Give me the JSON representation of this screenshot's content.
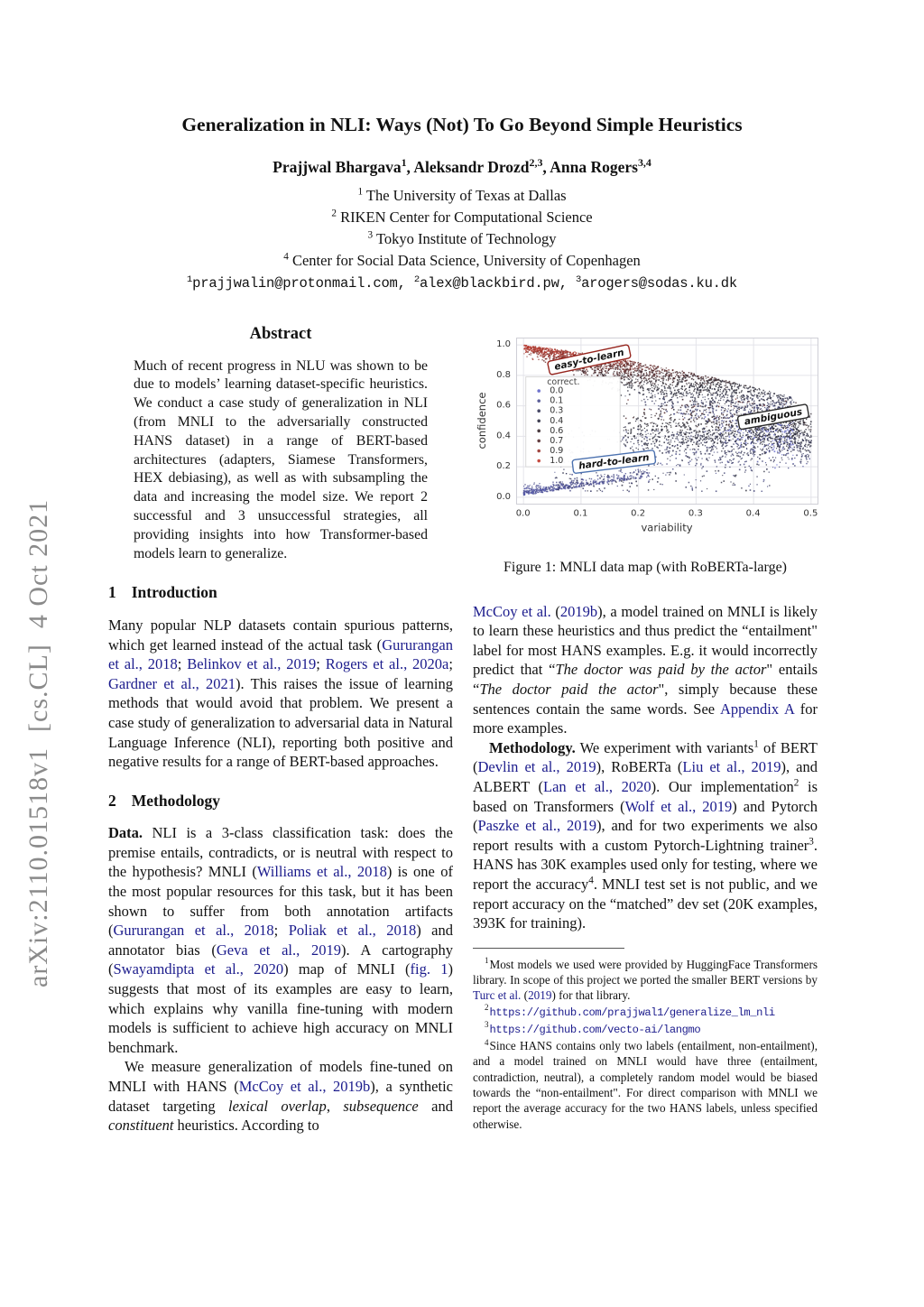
{
  "banner": {
    "text": "arXiv:2110.01518v1  [cs.CL]  4 Oct 2021"
  },
  "header": {
    "title": "Generalization in NLI: Ways (Not) To Go Beyond Simple Heuristics",
    "authors": [
      {
        "t": "Prajjwal Bhargava"
      },
      {
        "t": "1",
        "s": "sup"
      },
      {
        "t": ", "
      },
      {
        "t": "Aleksandr Drozd"
      },
      {
        "t": "2,3",
        "s": "sup"
      },
      {
        "t": ", "
      },
      {
        "t": "Anna Rogers"
      },
      {
        "t": "3,4",
        "s": "sup"
      }
    ],
    "affiliations": [
      [
        {
          "t": "1",
          "s": "sup"
        },
        {
          "t": " The University of Texas at Dallas"
        }
      ],
      [
        {
          "t": "2",
          "s": "sup"
        },
        {
          "t": " RIKEN Center for Computational Science"
        }
      ],
      [
        {
          "t": "3",
          "s": "sup"
        },
        {
          "t": " Tokyo Institute of Technology"
        }
      ],
      [
        {
          "t": "4",
          "s": "sup"
        },
        {
          "t": " Center for Social Data Science, University of Copenhagen"
        }
      ]
    ],
    "emails": [
      {
        "t": "1",
        "s": "sup"
      },
      {
        "t": "prajjwalin@protonmail.com, "
      },
      {
        "t": "2",
        "s": "sup"
      },
      {
        "t": "alex@blackbird.pw, "
      },
      {
        "t": "3",
        "s": "sup"
      },
      {
        "t": "arogers@sodas.ku.dk"
      }
    ]
  },
  "abstract": {
    "heading": "Abstract",
    "body": "Much of recent progress in NLU was shown to be due to models’ learning dataset-specific heuristics. We conduct a case study of generalization in NLI (from MNLI to the adversarially constructed HANS dataset) in a range of BERT-based architectures (adapters, Siamese Transformers, HEX debiasing), as well as with subsampling the data and increasing the model size. We report 2 successful and 3 unsuccessful strategies, all providing insights into how Transformer-based models learn to generalize."
  },
  "figure": {
    "caption": "Figure 1: MNLI data map (with RoBERTa-large)"
  },
  "chart_data": {
    "type": "scatter",
    "xlabel": "variability",
    "ylabel": "confidence",
    "xlim": [
      0.0,
      0.5
    ],
    "ylim": [
      0.0,
      1.0
    ],
    "xticks": [
      0.0,
      0.1,
      0.2,
      0.3,
      0.4,
      0.5
    ],
    "yticks": [
      0.0,
      0.2,
      0.4,
      0.6,
      0.8,
      1.0
    ],
    "grid": true,
    "legend": {
      "title": "correct.",
      "position": "upper-left",
      "values": [
        0.0,
        0.1,
        0.3,
        0.4,
        0.6,
        0.7,
        0.9,
        1.0
      ]
    },
    "palette": {
      "low": "#5f64c8",
      "mid": "#26262e",
      "high": "#bf382c"
    },
    "annotations": [
      {
        "label": "easy-to-learn",
        "x": 0.115,
        "y": 0.9,
        "rotation": -12,
        "border": "#96251e"
      },
      {
        "label": "ambiguous",
        "x": 0.435,
        "y": 0.525,
        "rotation": -10,
        "border": "#2b2b2b"
      },
      {
        "label": "hard-to-learn",
        "x": 0.158,
        "y": 0.23,
        "rotation": -7,
        "border": "#4c72b0"
      }
    ],
    "clusters": [
      {
        "name": "easy",
        "n": 2500,
        "p": {
          "vmax": 0.47,
          "vpow": 0.95,
          "d0": 0.05,
          "d1": 0.8
        }
      },
      {
        "name": "ambiguous",
        "n": 1500,
        "p": {
          "v0": 0.17,
          "vs": 0.33,
          "vpow": 0.75,
          "c0": 0.42,
          "cs": 0.19
        }
      },
      {
        "name": "hard",
        "n": 460,
        "p": {
          "vmax": 0.22,
          "vpow": 1.4,
          "slope": 0.55,
          "spread": 0.05
        }
      },
      {
        "name": "sparse",
        "n": 340,
        "p": {
          "v0": 0.05,
          "vs": 0.38,
          "c0": 0.04,
          "cs": 0.42
        }
      }
    ]
  },
  "left_column": [
    {
      "type": "heading",
      "num": "1",
      "label": "Introduction"
    },
    {
      "type": "para",
      "indent": false,
      "rich": [
        {
          "t": "Many popular NLP datasets contain spurious patterns, which get learned instead of the actual task ("
        },
        {
          "t": "Gururangan et al., 2018",
          "s": "link"
        },
        {
          "t": "; "
        },
        {
          "t": "Belinkov et al., 2019",
          "s": "link"
        },
        {
          "t": "; "
        },
        {
          "t": "Rogers et al., 2020a",
          "s": "link"
        },
        {
          "t": "; "
        },
        {
          "t": "Gardner et al., 2021",
          "s": "link"
        },
        {
          "t": "). This raises the issue of learning methods that would avoid that problem. We present a case study of generalization to adversarial data in Natural Language Inference (NLI), reporting both positive and negative results for a range of BERT-based approaches."
        }
      ]
    },
    {
      "type": "heading",
      "num": "2",
      "label": "Methodology"
    },
    {
      "type": "para",
      "indent": false,
      "rich": [
        {
          "t": "Data.",
          "s": "b"
        },
        {
          "t": " NLI is a 3-class classification task: does the premise entails, contradicts, or is neutral with respect to the hypothesis? MNLI ("
        },
        {
          "t": "Williams et al., 2018",
          "s": "link"
        },
        {
          "t": ") is one of the most popular resources for this task, but it has been shown to suffer from both annotation artifacts ("
        },
        {
          "t": "Gururangan et al., 2018",
          "s": "link"
        },
        {
          "t": "; "
        },
        {
          "t": "Poliak et al., 2018",
          "s": "link"
        },
        {
          "t": ") and annotator bias ("
        },
        {
          "t": "Geva et al., 2019",
          "s": "link"
        },
        {
          "t": "). A cartography ("
        },
        {
          "t": "Swayamdipta et al., 2020",
          "s": "link"
        },
        {
          "t": ") map of MNLI ("
        },
        {
          "t": "fig. 1",
          "s": "link"
        },
        {
          "t": ") suggests that most of its examples are easy to learn, which explains why vanilla fine-tuning with modern models is sufficient to achieve high accuracy on MNLI benchmark."
        }
      ]
    },
    {
      "type": "para",
      "indent": true,
      "rich": [
        {
          "t": "We measure generalization of models fine-tuned on MNLI with HANS ("
        },
        {
          "t": "McCoy et al., 2019b",
          "s": "link"
        },
        {
          "t": "), a synthetic dataset targeting "
        },
        {
          "t": "lexical overlap",
          "s": "i"
        },
        {
          "t": ", "
        },
        {
          "t": "subsequence",
          "s": "i"
        },
        {
          "t": " and "
        },
        {
          "t": "constituent",
          "s": "i"
        },
        {
          "t": " heuristics. According to"
        }
      ]
    }
  ],
  "right_column": [
    {
      "type": "para",
      "indent": false,
      "rich": [
        {
          "t": "McCoy et al.",
          "s": "link"
        },
        {
          "t": " ("
        },
        {
          "t": "2019b",
          "s": "link"
        },
        {
          "t": "), a model trained on MNLI is likely to learn these heuristics and thus predict the “entailment\" label for most HANS examples. E.g. it would incorrectly predict that “"
        },
        {
          "t": "The doctor was paid by the actor",
          "s": "i"
        },
        {
          "t": "\" entails “"
        },
        {
          "t": "The doctor paid the actor",
          "s": "i"
        },
        {
          "t": "\", simply because these sentences contain the same words. See "
        },
        {
          "t": "Appendix A",
          "s": "link"
        },
        {
          "t": " for more examples."
        }
      ]
    },
    {
      "type": "para",
      "indent": true,
      "rich": [
        {
          "t": "Methodology.",
          "s": "b"
        },
        {
          "t": " We experiment with variants"
        },
        {
          "t": "1",
          "s": "sup"
        },
        {
          "t": " of BERT ("
        },
        {
          "t": "Devlin et al., 2019",
          "s": "link"
        },
        {
          "t": "), RoBERTa ("
        },
        {
          "t": "Liu et al., 2019",
          "s": "link"
        },
        {
          "t": "), and ALBERT ("
        },
        {
          "t": "Lan et al., 2020",
          "s": "link"
        },
        {
          "t": "). Our implementation"
        },
        {
          "t": "2",
          "s": "sup"
        },
        {
          "t": " is based on Transformers ("
        },
        {
          "t": "Wolf et al., 2019",
          "s": "link"
        },
        {
          "t": ") and Pytorch ("
        },
        {
          "t": "Paszke et al., 2019",
          "s": "link"
        },
        {
          "t": "), and for two experiments we also report results with a custom Pytorch-Lightning trainer"
        },
        {
          "t": "3",
          "s": "sup"
        },
        {
          "t": ". HANS has 30K examples used only for testing, where we report the accuracy"
        },
        {
          "t": "4",
          "s": "sup"
        },
        {
          "t": ". MNLI test set is not public, and we report accuracy on the “matched” dev set (20K examples, 393K for training)."
        }
      ]
    }
  ],
  "footnotes": [
    {
      "num": "1",
      "rich": [
        {
          "t": "Most models we used were provided by HuggingFace Transformers library. In scope of this project we ported the smaller BERT versions by "
        },
        {
          "t": "Turc et al.",
          "s": "link"
        },
        {
          "t": " ("
        },
        {
          "t": "2019",
          "s": "link"
        },
        {
          "t": ") for that library."
        }
      ]
    },
    {
      "num": "2",
      "rich": [
        {
          "t": "https://github.com/prajjwal1/generalize_lm_nli",
          "s": "monolink"
        }
      ]
    },
    {
      "num": "3",
      "rich": [
        {
          "t": "https://github.com/vecto-ai/langmo",
          "s": "monolink"
        }
      ]
    },
    {
      "num": "4",
      "rich": [
        {
          "t": "Since HANS contains only two labels (entailment, non-entailment), and a model trained on MNLI would have three (entailment, contradiction, neutral), a completely random model would be biased towards the “non-entailment\". For direct comparison with MNLI we report the average accuracy for the two HANS labels, unless specified otherwise."
        }
      ]
    }
  ]
}
